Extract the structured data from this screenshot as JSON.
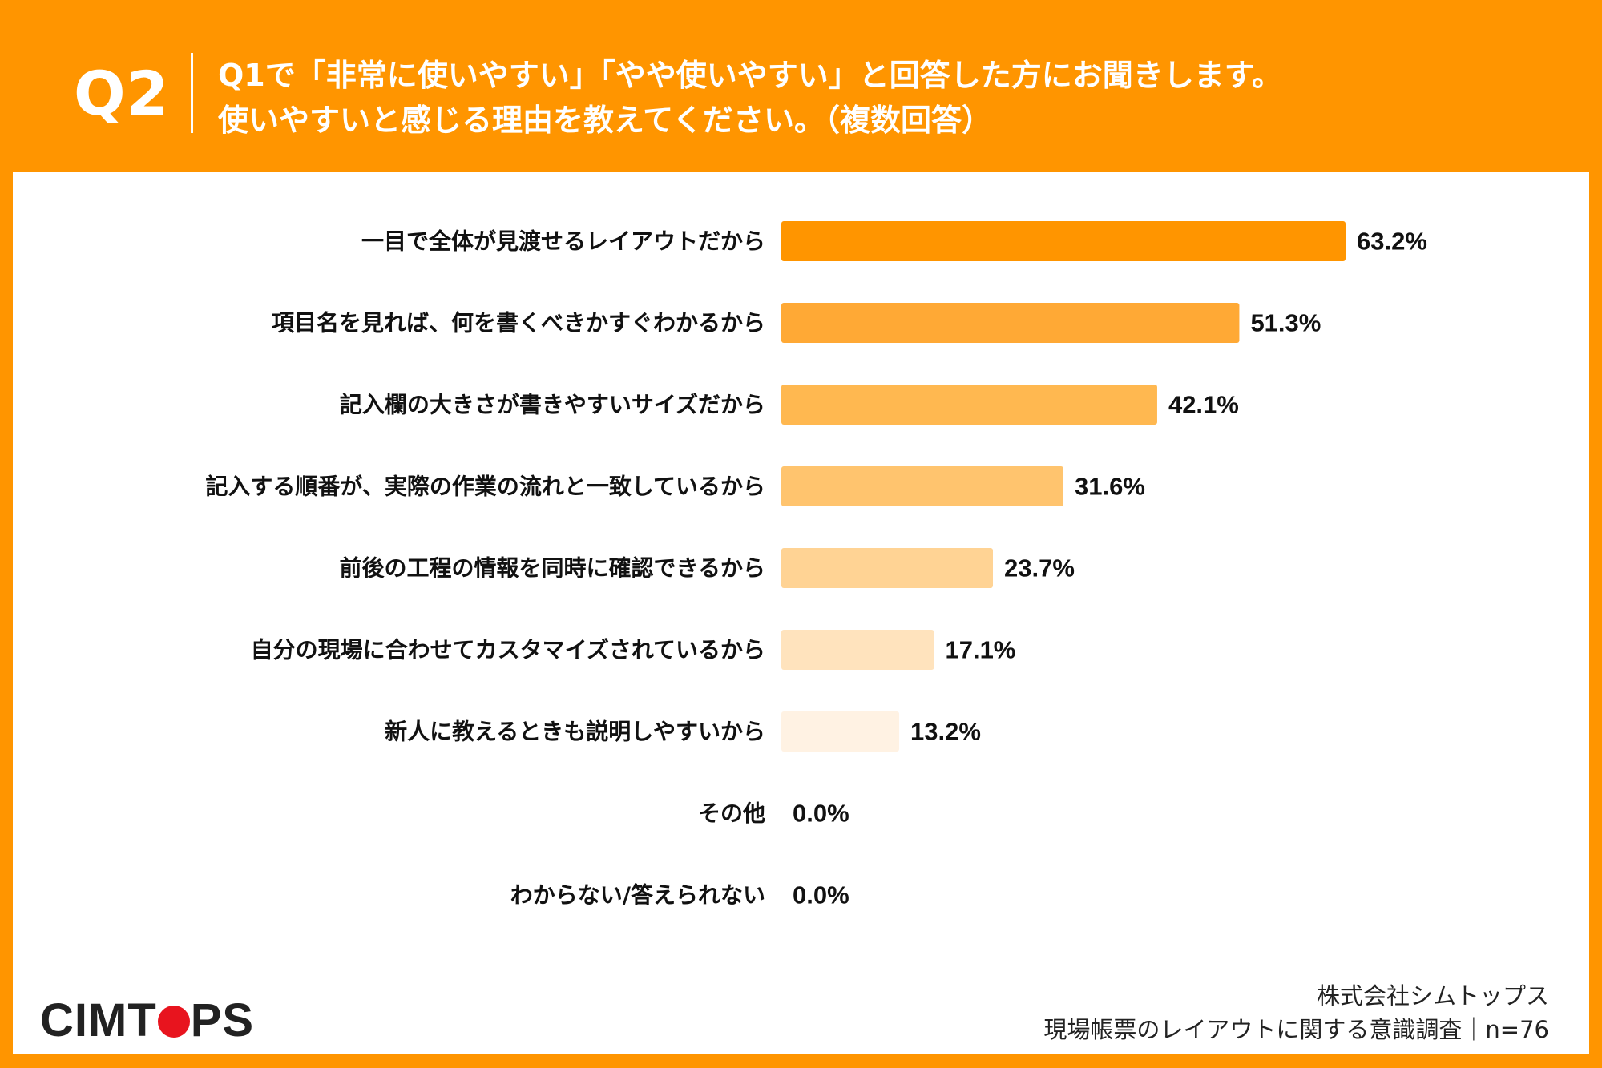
{
  "header": {
    "qnum": "Q2",
    "line1": "Q1で「非常に使いやすい」「やや使いやすい」と回答した方にお聞きします。",
    "line2": "使いやすいと感じる理由を教えてください。（複数回答）"
  },
  "chart_data": {
    "type": "bar",
    "orientation": "horizontal",
    "title": "Q1で「非常に使いやすい」「やや使いやすい」と回答した方にお聞きします。使いやすいと感じる理由を教えてください。（複数回答）",
    "unit": "%",
    "xlim": [
      0,
      100
    ],
    "categories": [
      "一目で全体が見渡せるレイアウトだから",
      "項目名を見れば、何を書くべきかすぐわかるから",
      "記入欄の大きさが書きやすいサイズだから",
      "記入する順番が、実際の作業の流れと一致しているから",
      "前後の工程の情報を同時に確認できるから",
      "自分の現場に合わせてカスタマイズされているから",
      "新人に教えるときも説明しやすいから",
      "その他",
      "わからない/答えられない"
    ],
    "values": [
      63.2,
      51.3,
      42.1,
      31.6,
      23.7,
      17.1,
      13.2,
      0.0,
      0.0
    ],
    "value_labels": [
      "63.2%",
      "51.3%",
      "42.1%",
      "31.6%",
      "23.7%",
      "17.1%",
      "13.2%",
      "0.0%",
      "0.0%"
    ],
    "colors": [
      "#ff9500",
      "#ffa935",
      "#ffb850",
      "#ffc46e",
      "#ffd394",
      "#ffe3bd",
      "#fff2e3",
      "#fff2e3",
      "#fff2e3"
    ]
  },
  "footer": {
    "logo": "CIMTOPS",
    "logo_left": "CIMT",
    "logo_right": "PS",
    "company": "株式会社シムトップス",
    "survey": "現場帳票のレイアウトに関する意識調査｜n=76"
  }
}
